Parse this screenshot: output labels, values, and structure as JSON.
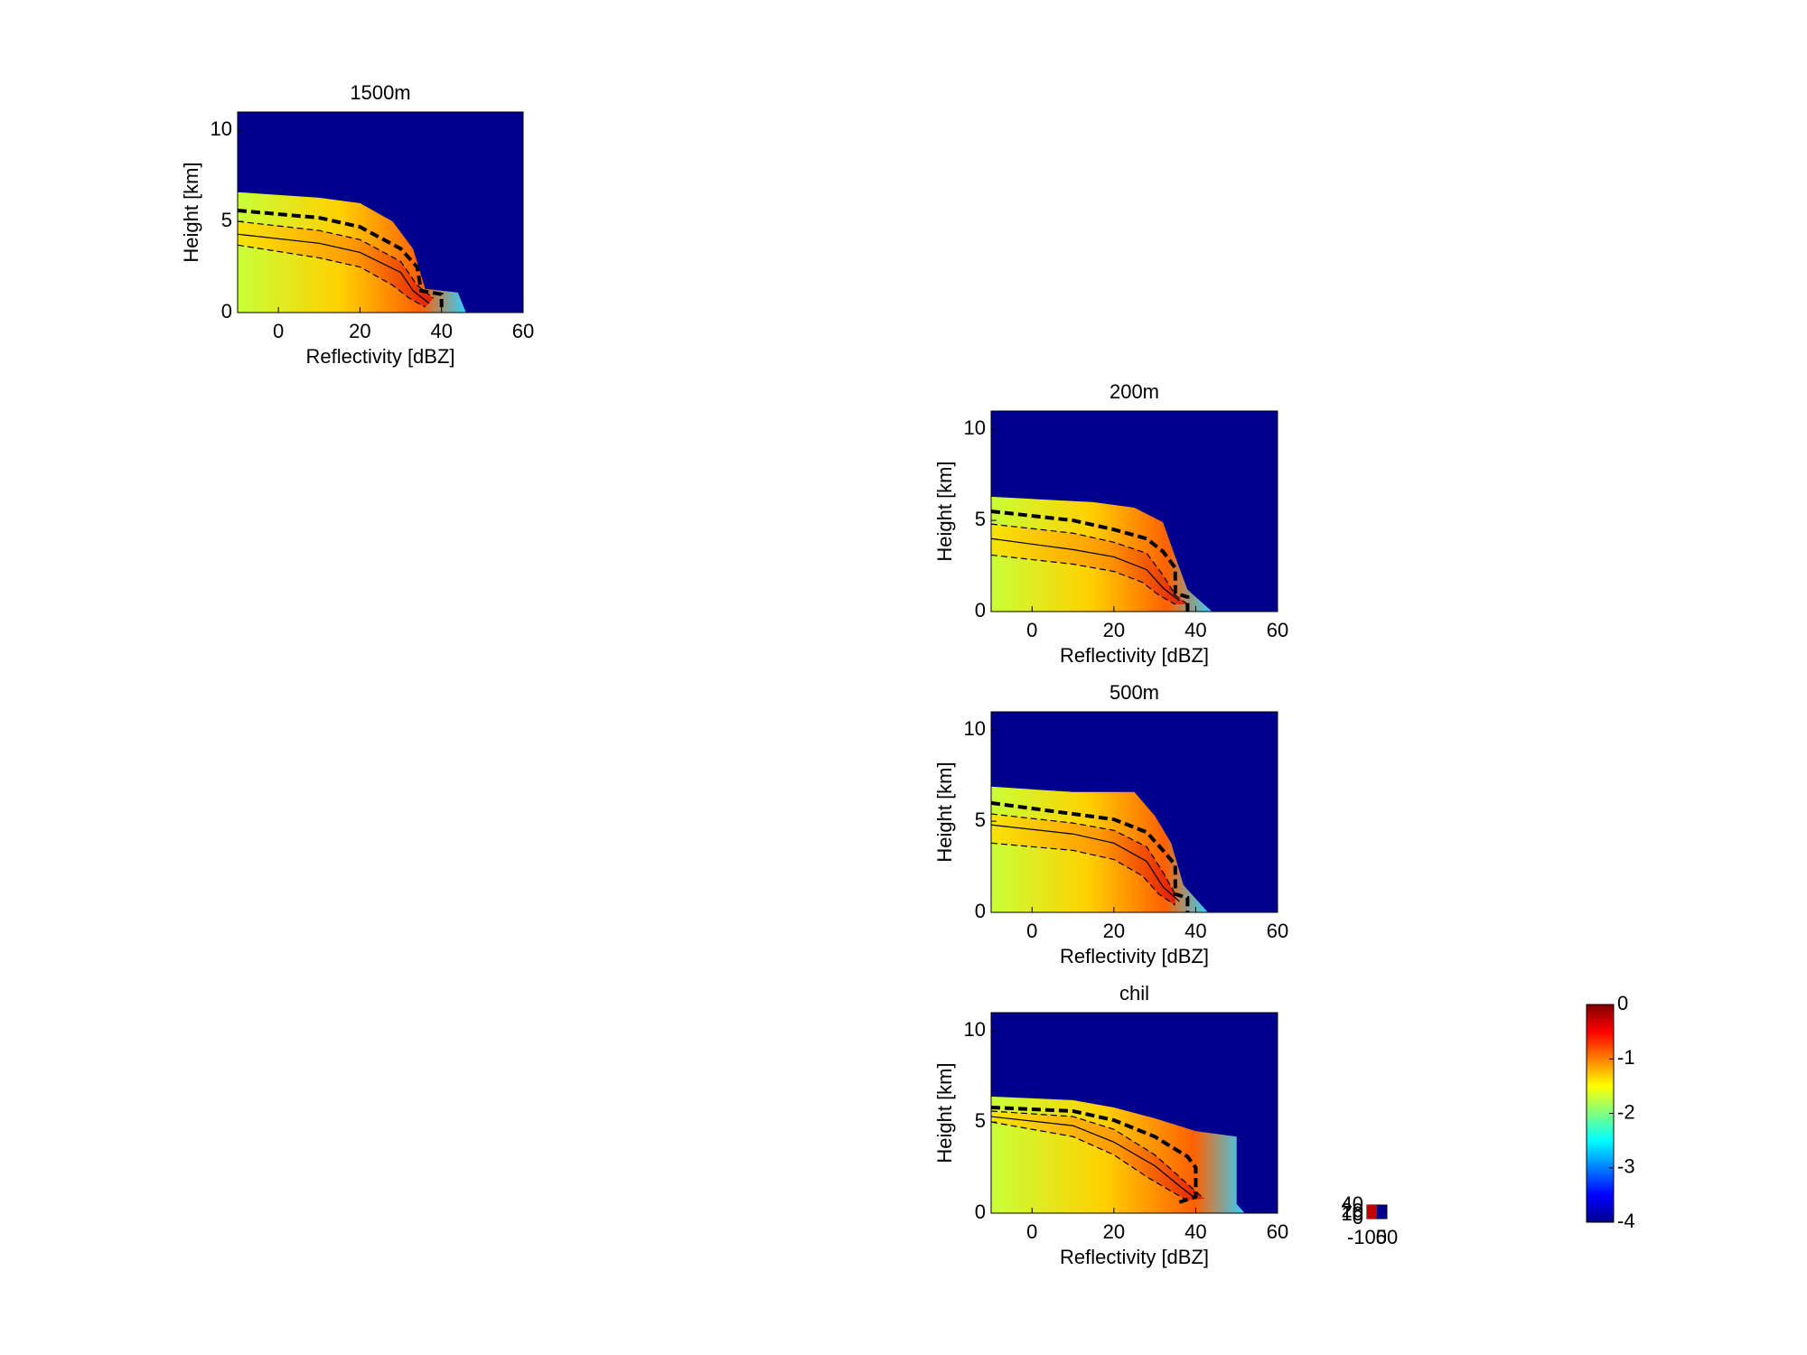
{
  "chart_data": [
    {
      "type": "heatmap",
      "title": "1500m",
      "xlabel": "Reflectivity [dBZ]",
      "ylabel": "Height [km]",
      "xlim": [
        -10,
        60
      ],
      "ylim": [
        0,
        11
      ],
      "xticks": [
        0,
        20,
        40,
        60
      ],
      "yticks": [
        0,
        5,
        10
      ],
      "envelope": {
        "x": [
          -10,
          10,
          20,
          28,
          33,
          36,
          44,
          46
        ],
        "y": [
          6.6,
          6.3,
          6.0,
          5.0,
          3.5,
          1.3,
          1.1,
          0
        ]
      },
      "lines": [
        {
          "style": "thick-dashed",
          "color": "#000000",
          "x": [
            -10,
            0,
            10,
            20,
            30,
            34,
            35,
            40,
            40
          ],
          "y": [
            5.6,
            5.4,
            5.2,
            4.7,
            3.5,
            2.5,
            1.2,
            1.0,
            0.3
          ]
        },
        {
          "style": "dashed",
          "color": "#000000",
          "x": [
            -10,
            10,
            20,
            30,
            34,
            38
          ],
          "y": [
            5.0,
            4.5,
            4.0,
            2.8,
            1.5,
            0.8
          ]
        },
        {
          "style": "solid",
          "color": "#000000",
          "x": [
            -10,
            10,
            20,
            30,
            33,
            37
          ],
          "y": [
            4.3,
            3.8,
            3.3,
            2.2,
            1.2,
            0.5
          ]
        },
        {
          "style": "dashed",
          "color": "#000000",
          "x": [
            -10,
            10,
            20,
            28,
            32,
            36
          ],
          "y": [
            3.7,
            3.0,
            2.5,
            1.5,
            0.8,
            0.3
          ]
        }
      ]
    },
    {
      "type": "heatmap",
      "title": "200m",
      "xlabel": "Reflectivity [dBZ]",
      "ylabel": "Height [km]",
      "xlim": [
        -10,
        60
      ],
      "ylim": [
        0,
        11
      ],
      "xticks": [
        0,
        20,
        40,
        60
      ],
      "yticks": [
        0,
        5,
        10
      ],
      "envelope": {
        "x": [
          -10,
          15,
          25,
          32,
          35,
          38,
          44
        ],
        "y": [
          6.3,
          6.0,
          5.7,
          4.9,
          3.0,
          1.2,
          0
        ]
      },
      "lines": [
        {
          "style": "thick-dashed",
          "color": "#000000",
          "x": [
            -10,
            10,
            20,
            28,
            32,
            35,
            35,
            38,
            38
          ],
          "y": [
            5.5,
            5.0,
            4.5,
            4.0,
            3.3,
            2.4,
            1.0,
            0.8,
            0
          ]
        },
        {
          "style": "dashed",
          "color": "#000000",
          "x": [
            -10,
            10,
            20,
            28,
            32,
            35,
            38
          ],
          "y": [
            4.8,
            4.3,
            3.8,
            3.2,
            2.0,
            0.9,
            0.4
          ]
        },
        {
          "style": "solid",
          "color": "#000000",
          "x": [
            -10,
            10,
            20,
            28,
            32,
            36
          ],
          "y": [
            4.0,
            3.4,
            3.0,
            2.3,
            1.3,
            0.6
          ]
        },
        {
          "style": "dashed",
          "color": "#000000",
          "x": [
            -10,
            10,
            20,
            27,
            31,
            35
          ],
          "y": [
            3.1,
            2.6,
            2.2,
            1.6,
            0.9,
            0.4
          ]
        }
      ]
    },
    {
      "type": "heatmap",
      "title": "500m",
      "xlabel": "Reflectivity [dBZ]",
      "ylabel": "Height [km]",
      "xlim": [
        -10,
        60
      ],
      "ylim": [
        0,
        11
      ],
      "xticks": [
        0,
        20,
        40,
        60
      ],
      "yticks": [
        0,
        5,
        10
      ],
      "envelope": {
        "x": [
          -10,
          10,
          25,
          30,
          34,
          37,
          43
        ],
        "y": [
          6.9,
          6.6,
          6.6,
          5.3,
          3.8,
          1.5,
          0
        ]
      },
      "lines": [
        {
          "style": "thick-dashed",
          "color": "#000000",
          "x": [
            -10,
            10,
            20,
            28,
            32,
            35,
            35,
            38,
            38
          ],
          "y": [
            6.0,
            5.4,
            5.1,
            4.4,
            3.4,
            2.6,
            1.0,
            0.8,
            0
          ]
        },
        {
          "style": "dashed",
          "color": "#000000",
          "x": [
            -10,
            10,
            20,
            28,
            32,
            35
          ],
          "y": [
            5.4,
            4.9,
            4.5,
            3.6,
            2.2,
            1.0
          ]
        },
        {
          "style": "solid",
          "color": "#000000",
          "x": [
            -10,
            10,
            20,
            28,
            32,
            36
          ],
          "y": [
            4.8,
            4.3,
            3.8,
            2.8,
            1.4,
            0.6
          ]
        },
        {
          "style": "dashed",
          "color": "#000000",
          "x": [
            -10,
            10,
            20,
            27,
            31,
            35
          ],
          "y": [
            3.8,
            3.4,
            2.9,
            2.0,
            1.0,
            0.4
          ]
        }
      ]
    },
    {
      "type": "heatmap",
      "title": "chil",
      "xlabel": "Reflectivity [dBZ]",
      "ylabel": "Height [km]",
      "xlim": [
        -10,
        60
      ],
      "ylim": [
        0,
        11
      ],
      "xticks": [
        0,
        20,
        40,
        60
      ],
      "yticks": [
        0,
        5,
        10
      ],
      "envelope": {
        "x": [
          -10,
          10,
          20,
          30,
          40,
          50,
          50,
          52
        ],
        "y": [
          6.4,
          6.2,
          5.8,
          5.2,
          4.5,
          4.2,
          0.5,
          0
        ]
      },
      "lines": [
        {
          "style": "thick-dashed",
          "color": "#000000",
          "x": [
            -10,
            10,
            20,
            30,
            38,
            40,
            40,
            36
          ],
          "y": [
            5.8,
            5.6,
            5.1,
            4.2,
            3.1,
            2.5,
            0.9,
            0.6
          ]
        },
        {
          "style": "dashed",
          "color": "#000000",
          "x": [
            -10,
            10,
            20,
            30,
            38,
            42
          ],
          "y": [
            5.6,
            5.3,
            4.6,
            3.2,
            1.6,
            0.8
          ]
        },
        {
          "style": "solid",
          "color": "#000000",
          "x": [
            -10,
            10,
            20,
            30,
            36,
            40
          ],
          "y": [
            5.3,
            4.8,
            3.9,
            2.6,
            1.5,
            0.8
          ]
        },
        {
          "style": "dashed",
          "color": "#000000",
          "x": [
            -10,
            10,
            20,
            28,
            34,
            38
          ],
          "y": [
            5.0,
            4.2,
            3.2,
            2.0,
            1.2,
            0.7
          ]
        }
      ]
    }
  ],
  "colorbar": {
    "clim": [
      -4,
      0
    ],
    "ticks": [
      -4,
      -3,
      -2,
      -1,
      0
    ]
  },
  "mini_axes": {
    "xlim": [
      -100,
      50
    ],
    "ylim": [
      0,
      40
    ],
    "xticks": [
      -100,
      50
    ],
    "yticks": [
      0,
      10,
      20,
      40
    ]
  }
}
